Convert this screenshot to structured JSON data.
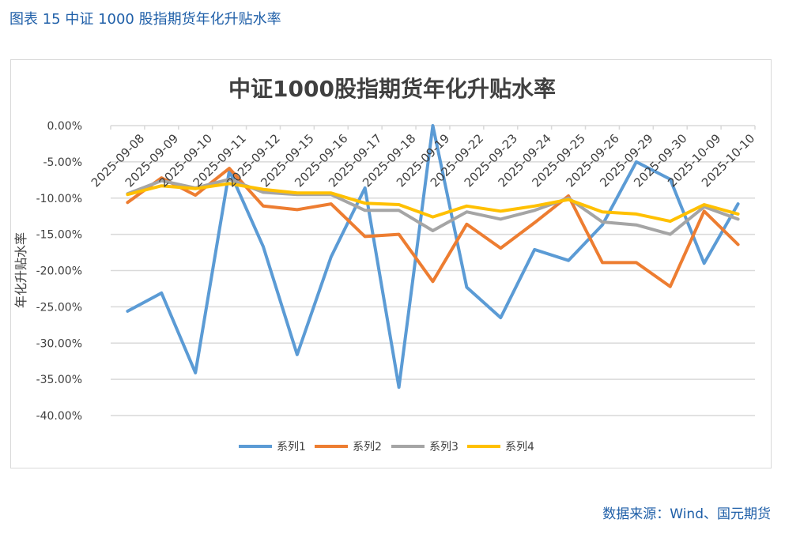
{
  "figure_title": "图表 15  中证 1000 股指期货年化升贴水率",
  "source": "数据来源：Wind、国元期货",
  "colors": {
    "s1": "#5b9bd5",
    "s2": "#ed7d31",
    "s3": "#a5a5a5",
    "s4": "#ffc000",
    "title_blue": "#1f5fa8"
  },
  "chart_data": {
    "type": "line",
    "title": "中证1000股指期货年化升贴水率",
    "xlabel": "",
    "ylabel": "年化升贴水率",
    "ylim": [
      -40,
      0
    ],
    "yticks": [
      0,
      -5,
      -10,
      -15,
      -20,
      -25,
      -30,
      -35,
      -40
    ],
    "ytick_labels": [
      "0.00%",
      "-5.00%",
      "-10.00%",
      "-15.00%",
      "-20.00%",
      "-25.00%",
      "-30.00%",
      "-35.00%",
      "-40.00%"
    ],
    "grid": true,
    "legend_position": "bottom",
    "categories": [
      "2025-09-08",
      "2025-09-09",
      "2025-09-10",
      "2025-09-11",
      "2025-09-12",
      "2025-09-15",
      "2025-09-16",
      "2025-09-17",
      "2025-09-18",
      "2025-09-19",
      "2025-09-22",
      "2025-09-23",
      "2025-09-24",
      "2025-09-25",
      "2025-09-26",
      "2025-09-29",
      "2025-09-30",
      "2025-10-09",
      "2025-10-10"
    ],
    "series": [
      {
        "name": "系列1",
        "values": [
          -25.6,
          -23.1,
          -34.1,
          -6.2,
          -16.7,
          -31.6,
          -18.1,
          -8.6,
          -36.1,
          0.0,
          -22.3,
          -26.5,
          -17.1,
          -18.6,
          -13.7,
          -5.0,
          -7.4,
          -19.0,
          -10.8
        ]
      },
      {
        "name": "系列2",
        "values": [
          -10.6,
          -7.2,
          -9.6,
          -5.9,
          -11.1,
          -11.6,
          -10.8,
          -15.3,
          -15.0,
          -21.5,
          -13.6,
          -16.9,
          -13.4,
          -9.7,
          -18.9,
          -18.9,
          -22.2,
          -11.8,
          -16.4
        ]
      },
      {
        "name": "系列3",
        "values": [
          -9.4,
          -7.6,
          -8.6,
          -7.4,
          -9.2,
          -9.5,
          -9.5,
          -11.7,
          -11.7,
          -14.5,
          -11.9,
          -12.9,
          -11.7,
          -10.0,
          -13.3,
          -13.7,
          -15.0,
          -11.2,
          -12.9
        ]
      },
      {
        "name": "系列4",
        "values": [
          -9.5,
          -8.3,
          -8.7,
          -8.0,
          -8.8,
          -9.3,
          -9.3,
          -10.7,
          -10.9,
          -12.6,
          -11.1,
          -11.8,
          -11.1,
          -10.2,
          -11.9,
          -12.2,
          -13.2,
          -10.9,
          -12.2
        ]
      }
    ]
  }
}
